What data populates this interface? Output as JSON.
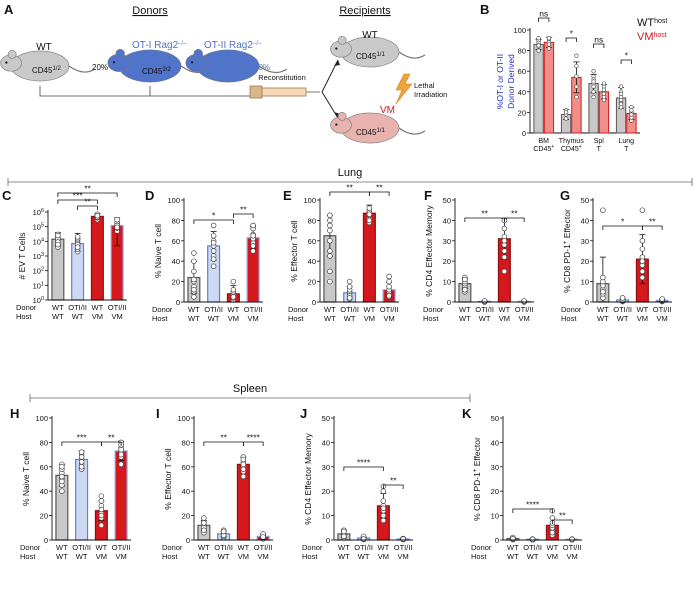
{
  "figure": {
    "panel_letters": [
      "A",
      "B",
      "C",
      "D",
      "E",
      "F",
      "G",
      "H",
      "I",
      "J",
      "K"
    ],
    "section_lung": "Lung",
    "section_spleen": "Spleen"
  },
  "schematic": {
    "donors_title": "Donors",
    "recipients_title": "Recipients",
    "donor_wt_label": "WT",
    "donor_wt_cd45": "CD45",
    "donor_wt_cd45_sup": "1/2",
    "donor_wt_pct": "20%",
    "donor_ot1_label": "OT-I Rag2",
    "donor_ot1_sup": "–/–",
    "donor_ot1_cd45": "CD45",
    "donor_ot1_cd45_sup": "2/2",
    "donor_ot1_pct": "40%",
    "donor_ot2_label": "OT-II Rag2",
    "donor_ot2_sup": "–/–",
    "donor_ot2_pct": "40%",
    "reconstitution": "Reconstitution",
    "lethal_irradiation": "Lethal Irradiation",
    "lethal": "Lethal",
    "irradiation": "Irradiation",
    "recip_wt_label": "WT",
    "recip_wt_cd45": "CD45",
    "recip_wt_cd45_sup": "1/1",
    "recip_vm_label": "VM",
    "recip_vm_cd45": "CD45",
    "recip_vm_cd45_sup": "1/1"
  },
  "colors": {
    "wt_bar": "#c8c8c8",
    "otii_bar": "#cdd9f3",
    "otii_edge": "#5b82d6",
    "vm_bar": "#d4181c",
    "vm_light": "#f08f8a",
    "otii_vm_edge": "#8a9ee8",
    "wt_mouse": "#c9c9c9",
    "ot_mouse": "#4f74c9",
    "vm_mouse": "#e8b2ae",
    "legend_vm": "#d4181c",
    "ylabel_b": "#1f2fd0"
  },
  "chart_data": [
    {
      "panel": "B",
      "type": "bar",
      "ylabel_line1": "%OT-I or OT-II",
      "ylabel_line2": "Donor Derived",
      "ylim": [
        0,
        100
      ],
      "yticks": [
        "0",
        "20",
        "40",
        "60",
        "80",
        "100"
      ],
      "categories": [
        {
          "l1": "BM",
          "l2": "CD45",
          "sup": "+"
        },
        {
          "l1": "Thymus",
          "l2": "CD45",
          "sup": "+"
        },
        {
          "l1": "Spl",
          "l2": "T",
          "sup": ""
        },
        {
          "l1": "Lung",
          "l2": "T",
          "sup": ""
        }
      ],
      "series": [
        {
          "name": "WT",
          "sup": "host",
          "values": [
            86,
            18,
            48,
            34
          ]
        },
        {
          "name": "VM",
          "sup": "host",
          "values": [
            88,
            54,
            40,
            19
          ]
        }
      ],
      "errors": [
        [
          5,
          5,
          9,
          10
        ],
        [
          5,
          15,
          7,
          6
        ]
      ],
      "points": [
        [
          [
            80,
            84,
            86,
            88,
            90,
            92,
            85
          ],
          [
            14,
            18,
            22,
            20
          ],
          [
            40,
            55,
            48,
            45,
            52,
            35,
            60,
            50
          ],
          [
            25,
            30,
            35,
            40,
            45,
            28,
            38,
            32
          ]
        ],
        [
          [
            82,
            86,
            90,
            88,
            92,
            86
          ],
          [
            35,
            45,
            65,
            75,
            55
          ],
          [
            35,
            40,
            45,
            48,
            38,
            32,
            42
          ],
          [
            12,
            15,
            20,
            25,
            18,
            22
          ]
        ]
      ],
      "significance": [
        "ns",
        "*",
        "ns",
        "*"
      ]
    },
    {
      "panel": "C",
      "type": "bar",
      "yscale": "log",
      "ylabel": "# EV T Cells",
      "ylim": [
        1,
        1000000
      ],
      "yticks": [
        {
          "b": "10",
          "e": "0"
        },
        {
          "b": "10",
          "e": "1"
        },
        {
          "b": "10",
          "e": "2"
        },
        {
          "b": "10",
          "e": "3"
        },
        {
          "b": "10",
          "e": "4"
        },
        {
          "b": "10",
          "e": "5"
        },
        {
          "b": "10",
          "e": "6"
        }
      ],
      "categories": [
        {
          "donor": "WT",
          "host": "WT"
        },
        {
          "donor": "OTI/II",
          "host": "WT"
        },
        {
          "donor": "WT",
          "host": "VM"
        },
        {
          "donor": "OTI/II",
          "host": "VM"
        }
      ],
      "values": [
        14000,
        7000,
        500000,
        120000
      ],
      "error_high": [
        40000,
        35000,
        800000,
        400000
      ],
      "error_low": [
        5000,
        2000,
        300000,
        5000
      ],
      "points": [
        [
          4000,
          8000,
          12000,
          20000,
          30000,
          15000,
          9000,
          25000,
          6000
        ],
        [
          2000,
          3000,
          5000,
          8000,
          12000,
          15000,
          6000,
          20000,
          4000
        ],
        [
          300000,
          400000,
          500000,
          600000,
          700000,
          450000,
          550000
        ],
        [
          50000,
          80000,
          100000,
          150000,
          200000,
          120000,
          90000,
          300000
        ]
      ],
      "significance": [
        {
          "a": 0,
          "b": 2,
          "label": "***"
        },
        {
          "a": 1,
          "b": 2,
          "label": "**"
        },
        {
          "a": 0,
          "b": 3,
          "label": "**"
        }
      ]
    },
    {
      "panel": "D",
      "type": "bar",
      "ylabel": "% Naive T cell",
      "ylim": [
        0,
        100
      ],
      "yticks": [
        "0",
        "20",
        "40",
        "60",
        "80",
        "100"
      ],
      "categories": [
        {
          "donor": "WT",
          "host": "WT"
        },
        {
          "donor": "OTI/II",
          "host": "WT"
        },
        {
          "donor": "WT",
          "host": "VM"
        },
        {
          "donor": "OTI/II",
          "host": "VM"
        }
      ],
      "values": [
        24,
        55,
        8,
        63
      ],
      "errors": [
        16,
        14,
        8,
        11
      ],
      "points": [
        [
          5,
          10,
          15,
          20,
          30,
          40,
          48,
          22,
          12
        ],
        [
          35,
          45,
          55,
          60,
          65,
          75,
          50,
          58,
          42
        ],
        [
          2,
          4,
          6,
          8,
          10,
          20,
          5,
          12
        ],
        [
          50,
          58,
          62,
          66,
          72,
          75,
          55,
          65
        ]
      ],
      "significance": [
        {
          "a": 0,
          "b": 2,
          "label": "*"
        },
        {
          "a": 2,
          "b": 3,
          "label": "**"
        }
      ]
    },
    {
      "panel": "E",
      "type": "bar",
      "ylabel": "% Effector T cell",
      "ylim": [
        0,
        100
      ],
      "yticks": [
        "0",
        "20",
        "40",
        "60",
        "80",
        "100"
      ],
      "categories": [
        {
          "donor": "WT",
          "host": "WT"
        },
        {
          "donor": "OTI/II",
          "host": "WT"
        },
        {
          "donor": "WT",
          "host": "VM"
        },
        {
          "donor": "OTI/II",
          "host": "VM"
        }
      ],
      "values": [
        65,
        9,
        87,
        12
      ],
      "errors": [
        20,
        6,
        8,
        7
      ],
      "points": [
        [
          30,
          45,
          60,
          70,
          80,
          85,
          50,
          75,
          20
        ],
        [
          3,
          5,
          8,
          10,
          12,
          15,
          6,
          20,
          4
        ],
        [
          78,
          82,
          85,
          88,
          90,
          92,
          86,
          80
        ],
        [
          5,
          8,
          10,
          12,
          15,
          20,
          6,
          25
        ]
      ],
      "significance": [
        {
          "a": 0,
          "b": 2,
          "label": "**"
        },
        {
          "a": 2,
          "b": 3,
          "label": "**"
        }
      ]
    },
    {
      "panel": "F",
      "type": "bar",
      "ylabel": "% CD4 Effector Memory",
      "ylim": [
        0,
        50
      ],
      "yticks": [
        "0",
        "10",
        "20",
        "30",
        "40",
        "50"
      ],
      "categories": [
        {
          "donor": "WT",
          "host": "WT"
        },
        {
          "donor": "OTI/II",
          "host": "WT"
        },
        {
          "donor": "WT",
          "host": "VM"
        },
        {
          "donor": "OTI/II",
          "host": "VM"
        }
      ],
      "values": [
        9,
        0.3,
        31,
        0.3
      ],
      "errors": [
        2.5,
        0.3,
        10,
        0.3
      ],
      "points": [
        [
          5,
          7,
          8,
          9,
          10,
          12,
          6,
          11
        ],
        [
          0,
          0.2,
          0.4,
          0.3,
          0.1,
          0.5
        ],
        [
          15,
          22,
          28,
          32,
          36,
          40,
          30,
          25
        ],
        [
          0,
          0.2,
          0.4,
          0.3,
          0.1,
          0.5
        ]
      ],
      "significance": [
        {
          "a": 0,
          "b": 2,
          "label": "**"
        },
        {
          "a": 2,
          "b": 3,
          "label": "**"
        }
      ]
    },
    {
      "panel": "G",
      "type": "bar",
      "ylabel": "% CD8 PD-1",
      "ylabel_sup": "+",
      "ylabel_tail": " Effector",
      "ylim": [
        0,
        50
      ],
      "yticks": [
        "0",
        "10",
        "20",
        "30",
        "40",
        "50"
      ],
      "categories": [
        {
          "donor": "WT",
          "host": "WT"
        },
        {
          "donor": "OTI/II",
          "host": "WT"
        },
        {
          "donor": "WT",
          "host": "VM"
        },
        {
          "donor": "OTI/II",
          "host": "VM"
        }
      ],
      "values": [
        9,
        1,
        21,
        0.8
      ],
      "errors": [
        13,
        0.8,
        12,
        0.6
      ],
      "points": [
        [
          2,
          4,
          6,
          8,
          10,
          12,
          45,
          5
        ],
        [
          0.2,
          0.5,
          1,
          1.5,
          0.8,
          2
        ],
        [
          12,
          15,
          18,
          22,
          26,
          30,
          45,
          20
        ],
        [
          0.2,
          0.5,
          1,
          1.2,
          0.8,
          1.5
        ]
      ],
      "significance": [
        {
          "a": 0,
          "b": 2,
          "label": "*"
        },
        {
          "a": 2,
          "b": 3,
          "label": "**"
        }
      ]
    },
    {
      "panel": "H",
      "type": "bar",
      "ylabel": "% Naive T cell",
      "ylim": [
        0,
        100
      ],
      "yticks": [
        "0",
        "20",
        "40",
        "60",
        "80",
        "100"
      ],
      "categories": [
        {
          "donor": "WT",
          "host": "WT"
        },
        {
          "donor": "OTI/II",
          "host": "WT"
        },
        {
          "donor": "WT",
          "host": "VM"
        },
        {
          "donor": "OTI/II",
          "host": "VM"
        }
      ],
      "values": [
        53,
        66,
        24,
        73
      ],
      "errors": [
        9,
        7,
        8,
        8
      ],
      "points": [
        [
          40,
          45,
          50,
          55,
          58,
          62,
          48,
          60,
          52
        ],
        [
          58,
          62,
          66,
          70,
          72,
          64,
          68,
          60
        ],
        [
          12,
          18,
          22,
          28,
          32,
          36,
          20,
          25
        ],
        [
          62,
          68,
          72,
          76,
          80,
          70,
          74,
          78
        ]
      ],
      "significance": [
        {
          "a": 0,
          "b": 2,
          "label": "***"
        },
        {
          "a": 2,
          "b": 3,
          "label": "**"
        }
      ]
    },
    {
      "panel": "I",
      "type": "bar",
      "ylabel": "% Effector T cell",
      "ylim": [
        0,
        100
      ],
      "yticks": [
        "0",
        "20",
        "40",
        "60",
        "80",
        "100"
      ],
      "categories": [
        {
          "donor": "WT",
          "host": "WT"
        },
        {
          "donor": "OTI/II",
          "host": "WT"
        },
        {
          "donor": "WT",
          "host": "VM"
        },
        {
          "donor": "OTI/II",
          "host": "VM"
        }
      ],
      "values": [
        12,
        5,
        62,
        3
      ],
      "errors": [
        4,
        2,
        6,
        2
      ],
      "points": [
        [
          6,
          9,
          12,
          15,
          18,
          10,
          14,
          8
        ],
        [
          2,
          3,
          5,
          6,
          8,
          4,
          7
        ],
        [
          52,
          56,
          60,
          64,
          68,
          62,
          58,
          66
        ],
        [
          1,
          2,
          3,
          4,
          5,
          2.5
        ]
      ],
      "significance": [
        {
          "a": 0,
          "b": 2,
          "label": "**"
        },
        {
          "a": 2,
          "b": 3,
          "label": "****"
        }
      ]
    },
    {
      "panel": "J",
      "type": "bar",
      "ylabel": "% CD4 Effector Memory",
      "ylim": [
        0,
        50
      ],
      "yticks": [
        "0",
        "10",
        "20",
        "30",
        "40",
        "50"
      ],
      "categories": [
        {
          "donor": "WT",
          "host": "WT"
        },
        {
          "donor": "OTI/II",
          "host": "WT"
        },
        {
          "donor": "WT",
          "host": "VM"
        },
        {
          "donor": "OTI/II",
          "host": "VM"
        }
      ],
      "values": [
        2.5,
        0.8,
        14,
        0.5
      ],
      "errors": [
        1.5,
        0.5,
        5,
        0.3
      ],
      "points": [
        [
          1,
          2,
          2.5,
          3,
          4,
          1.5,
          3.5
        ],
        [
          0.2,
          0.5,
          0.8,
          1,
          1.5,
          0.4
        ],
        [
          8,
          10,
          12,
          14,
          16,
          20,
          22,
          13
        ],
        [
          0.2,
          0.3,
          0.5,
          0.6,
          0.4
        ]
      ],
      "significance": [
        {
          "a": 0,
          "b": 2,
          "label": "****"
        },
        {
          "a": 2,
          "b": 3,
          "label": "**"
        }
      ]
    },
    {
      "panel": "K",
      "type": "bar",
      "ylabel": "% CD8 PD-1",
      "ylabel_sup": "+",
      "ylabel_tail": " Effector",
      "ylim": [
        0,
        50
      ],
      "yticks": [
        "0",
        "10",
        "20",
        "30",
        "40",
        "50"
      ],
      "categories": [
        {
          "donor": "WT",
          "host": "WT"
        },
        {
          "donor": "OTI/II",
          "host": "WT"
        },
        {
          "donor": "WT",
          "host": "VM"
        },
        {
          "donor": "OTI/II",
          "host": "VM"
        }
      ],
      "values": [
        0.6,
        0.3,
        6,
        0.3
      ],
      "errors": [
        0.4,
        0.2,
        3,
        0.2
      ],
      "points": [
        [
          0.2,
          0.4,
          0.6,
          0.8,
          1,
          0.5
        ],
        [
          0.1,
          0.2,
          0.3,
          0.4,
          0.3
        ],
        [
          2,
          4,
          5,
          6,
          7,
          9,
          12,
          3
        ],
        [
          0.1,
          0.2,
          0.3,
          0.4,
          0.3
        ]
      ],
      "significance": [
        {
          "a": 0,
          "b": 2,
          "label": "****"
        },
        {
          "a": 2,
          "b": 3,
          "label": "**"
        }
      ]
    }
  ]
}
